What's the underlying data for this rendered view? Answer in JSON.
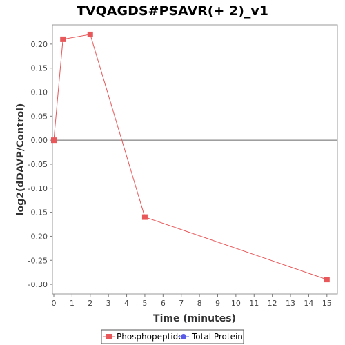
{
  "chart_data": {
    "type": "line",
    "title": "TVQAGDS#PSAVR(+ 2)_v1",
    "xlabel": "Time (minutes)",
    "ylabel": "log2(dDAVP/Control)",
    "xlim": [
      0,
      15.5
    ],
    "ylim": [
      -0.32,
      0.24
    ],
    "x_ticks": [
      0,
      1,
      2,
      3,
      4,
      5,
      6,
      7,
      8,
      9,
      10,
      11,
      12,
      13,
      14,
      15
    ],
    "y_ticks": [
      0.2,
      0.15,
      0.1,
      0.05,
      0.0,
      -0.05,
      -0.1,
      -0.15,
      -0.2,
      -0.25,
      -0.3
    ],
    "y_tick_labels": [
      "0.20",
      "0.15",
      "0.10",
      "0.05",
      "0.00",
      "-0.05",
      "-0.10",
      "-0.15",
      "-0.20",
      "-0.25",
      "-0.30"
    ],
    "grid": false,
    "zero_line": true,
    "legend_placement": "bottom",
    "series": [
      {
        "name": "Phosphopeptide",
        "color": "#e8585a",
        "marker": "square",
        "x": [
          0,
          0.5,
          2,
          5,
          15
        ],
        "y": [
          0.0,
          0.21,
          0.22,
          -0.16,
          -0.29
        ]
      },
      {
        "name": "Total Protein",
        "color": "#5a5ae8",
        "marker": "circle",
        "x": [],
        "y": []
      }
    ]
  }
}
